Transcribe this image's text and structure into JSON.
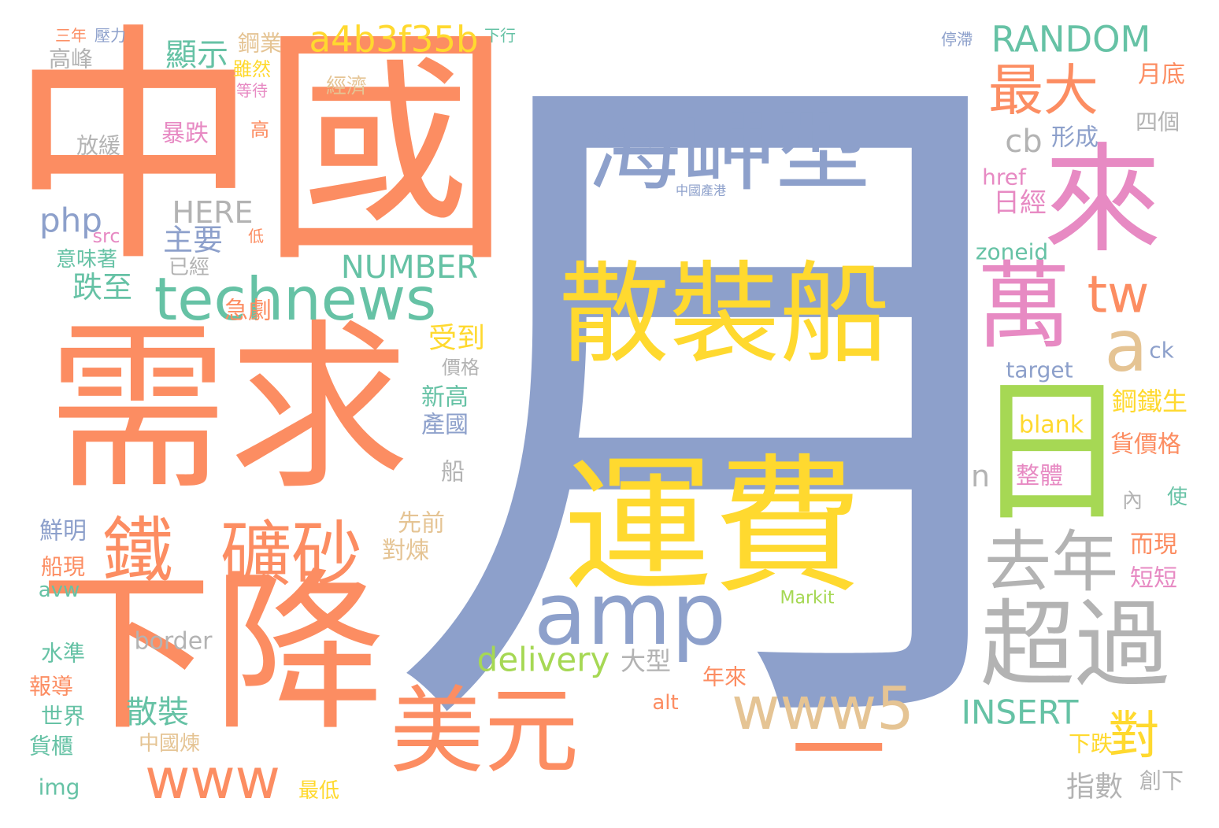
{
  "palette": {
    "orange": "#fc8d62",
    "blue": "#8da0cb",
    "pink": "#e78ac3",
    "green": "#66c2a5",
    "lime": "#a6d854",
    "yellow": "#ffd92f",
    "tan": "#e5c494",
    "gray": "#b3b3b3"
  },
  "words": [
    {
      "text": "月",
      "color": "blue"
    },
    {
      "text": "中國",
      "color": "orange"
    },
    {
      "text": "需求",
      "color": "orange"
    },
    {
      "text": "下降",
      "color": "orange"
    },
    {
      "text": "運費",
      "color": "yellow"
    },
    {
      "text": "散裝船",
      "color": "yellow"
    },
    {
      "text": "海岬型",
      "color": "blue"
    },
    {
      "text": "來",
      "color": "pink"
    },
    {
      "text": "日",
      "color": "lime"
    },
    {
      "text": "一",
      "color": "orange"
    },
    {
      "text": "萬",
      "color": "pink"
    },
    {
      "text": "美元",
      "color": "orange"
    },
    {
      "text": "超過",
      "color": "gray"
    },
    {
      "text": "amp",
      "color": "blue"
    },
    {
      "text": "鐵",
      "color": "orange"
    },
    {
      "text": "礦砂",
      "color": "orange"
    },
    {
      "text": "technews",
      "color": "green"
    },
    {
      "text": "www5",
      "color": "tan"
    },
    {
      "text": "去年",
      "color": "gray"
    },
    {
      "text": "www",
      "color": "orange"
    },
    {
      "text": "最大",
      "color": "orange"
    },
    {
      "text": "a",
      "color": "tan"
    },
    {
      "text": "a4b3f35b",
      "color": "yellow"
    },
    {
      "text": "RANDOM",
      "color": "green"
    },
    {
      "text": "tw",
      "color": "orange"
    },
    {
      "text": "對",
      "color": "yellow"
    },
    {
      "text": "delivery",
      "color": "lime"
    },
    {
      "text": "NUMBER",
      "color": "green"
    },
    {
      "text": "INSERT",
      "color": "green"
    },
    {
      "text": "php",
      "color": "blue"
    },
    {
      "text": "HERE",
      "color": "gray"
    },
    {
      "text": "cb",
      "color": "gray"
    },
    {
      "text": "顯示",
      "color": "green"
    },
    {
      "text": "主要",
      "color": "blue"
    },
    {
      "text": "跌至",
      "color": "green"
    },
    {
      "text": "急劇",
      "color": "orange"
    },
    {
      "text": "受到",
      "color": "yellow"
    },
    {
      "text": "散裝",
      "color": "green"
    },
    {
      "text": "border",
      "color": "gray"
    },
    {
      "text": "大型",
      "color": "gray"
    },
    {
      "text": "指數",
      "color": "gray"
    },
    {
      "text": "blank",
      "color": "yellow"
    },
    {
      "text": "日經",
      "color": "pink"
    },
    {
      "text": "href",
      "color": "pink"
    },
    {
      "text": "zoneid",
      "color": "green"
    },
    {
      "text": "target",
      "color": "blue"
    },
    {
      "text": "形成",
      "color": "blue"
    },
    {
      "text": "鋼鐵生",
      "color": "yellow"
    },
    {
      "text": "貨價格",
      "color": "orange"
    },
    {
      "text": "整體",
      "color": "pink"
    },
    {
      "text": "n",
      "color": "gray"
    },
    {
      "text": "月底",
      "color": "orange"
    },
    {
      "text": "四個",
      "color": "gray"
    },
    {
      "text": "新高",
      "color": "green"
    },
    {
      "text": "產國",
      "color": "blue"
    },
    {
      "text": "先前",
      "color": "tan"
    },
    {
      "text": "對煉",
      "color": "tan"
    },
    {
      "text": "鮮明",
      "color": "blue"
    },
    {
      "text": "船現",
      "color": "orange"
    },
    {
      "text": "水準",
      "color": "green"
    },
    {
      "text": "報導",
      "color": "orange"
    },
    {
      "text": "世界",
      "color": "green"
    },
    {
      "text": "貨櫃",
      "color": "green"
    },
    {
      "text": "img",
      "color": "green"
    },
    {
      "text": "中國煉",
      "color": "tan"
    },
    {
      "text": "最低",
      "color": "yellow"
    },
    {
      "text": "年來",
      "color": "orange"
    },
    {
      "text": "avw",
      "color": "green"
    },
    {
      "text": "alt",
      "color": "orange"
    },
    {
      "text": "而現",
      "color": "orange"
    },
    {
      "text": "短短",
      "color": "pink"
    },
    {
      "text": "下跌",
      "color": "yellow"
    },
    {
      "text": "創下",
      "color": "gray"
    },
    {
      "text": "內",
      "color": "gray"
    },
    {
      "text": "使",
      "color": "green"
    },
    {
      "text": "ck",
      "color": "blue"
    },
    {
      "text": "鋼業",
      "color": "tan"
    },
    {
      "text": "雖然",
      "color": "yellow"
    },
    {
      "text": "等待",
      "color": "pink"
    },
    {
      "text": "高峰",
      "color": "gray"
    },
    {
      "text": "暴跌",
      "color": "pink"
    },
    {
      "text": "放緩",
      "color": "gray"
    },
    {
      "text": "經濟",
      "color": "tan"
    },
    {
      "text": "三年",
      "color": "orange"
    },
    {
      "text": "壓力",
      "color": "blue"
    },
    {
      "text": "下行",
      "color": "green"
    },
    {
      "text": "停滯",
      "color": "blue"
    },
    {
      "text": "src",
      "color": "pink"
    },
    {
      "text": "意味著",
      "color": "green"
    },
    {
      "text": "已經",
      "color": "gray"
    },
    {
      "text": "低",
      "color": "orange"
    },
    {
      "text": "高",
      "color": "orange"
    },
    {
      "text": "船",
      "color": "gray"
    },
    {
      "text": "價格",
      "color": "gray"
    },
    {
      "text": "Markit",
      "color": "lime"
    },
    {
      "text": "中國產港",
      "color": "blue"
    }
  ]
}
